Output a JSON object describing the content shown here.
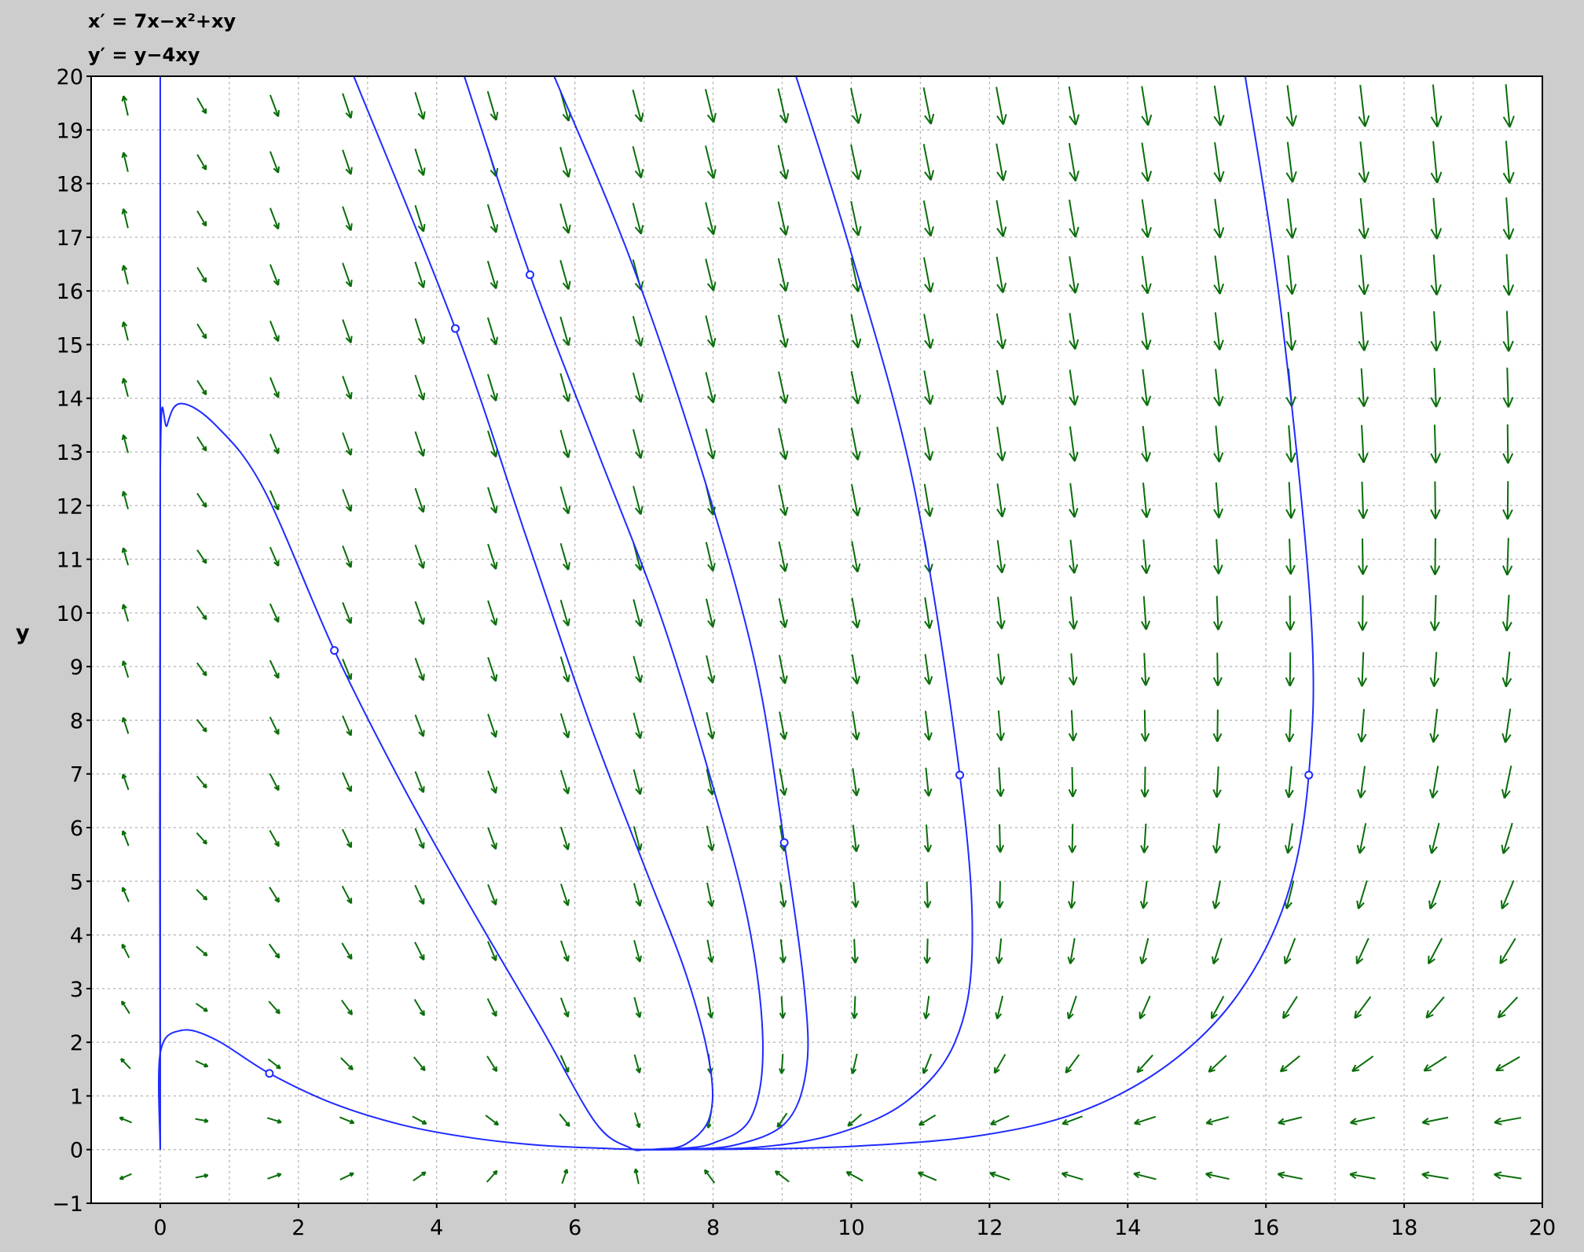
{
  "equations": {
    "x_prime": "x′ = 7x−x²+xy",
    "y_prime": "y′ = y−4xy"
  },
  "colors": {
    "background": "#cdcdcd",
    "plot_background": "#ffffff",
    "grid": "#b4b4b4",
    "trajectory": "#1f2bff",
    "direction_field": "#0a6e0a"
  },
  "chart_data": {
    "type": "direction field",
    "title": "",
    "xlabel": "",
    "ylabel": "y",
    "xlim": [
      -1,
      20
    ],
    "ylim": [
      -1,
      20
    ],
    "x_ticks": [
      "0",
      "2",
      "4",
      "6",
      "8",
      "10",
      "12",
      "14",
      "16",
      "18",
      "20"
    ],
    "y_ticks": [
      "-1",
      "0",
      "1",
      "2",
      "3",
      "4",
      "5",
      "6",
      "7",
      "8",
      "9",
      "10",
      "11",
      "12",
      "13",
      "14",
      "15",
      "16",
      "17",
      "18",
      "19",
      "20"
    ],
    "grid": true,
    "system": {
      "dx": "7x - x^2 + xy",
      "dy": "y - 4xy"
    },
    "field_x": [
      -0.5,
      0.6,
      1.65,
      2.7,
      3.75,
      4.8,
      5.85,
      6.9,
      7.95,
      9.0,
      10.05,
      11.1,
      12.15,
      13.2,
      14.25,
      15.3,
      16.35,
      17.4,
      18.45,
      19.5
    ],
    "field_y": [
      -0.5,
      0.55,
      1.6,
      2.65,
      3.7,
      4.75,
      5.8,
      6.85,
      7.9,
      8.95,
      10.0,
      11.05,
      12.1,
      13.15,
      14.2,
      15.25,
      16.3,
      17.35,
      18.4,
      19.45
    ],
    "trajectories": [
      {
        "initial": [
          1.58,
          1.42
        ],
        "points": [
          [
            0,
            0
          ],
          [
            0,
            1.8
          ],
          [
            0.3,
            2.22
          ],
          [
            0.8,
            2.05
          ],
          [
            1.58,
            1.42
          ],
          [
            2.5,
            0.86
          ],
          [
            3.5,
            0.46
          ],
          [
            4.5,
            0.22
          ],
          [
            5.5,
            0.08
          ],
          [
            6.5,
            0.02
          ],
          [
            7.0,
            0.0
          ]
        ]
      },
      {
        "initial": [
          2.52,
          9.3
        ],
        "points": [
          [
            0,
            0
          ],
          [
            0,
            12.6
          ],
          [
            0.1,
            13.5
          ],
          [
            0.3,
            13.9
          ],
          [
            0.8,
            13.5
          ],
          [
            1.5,
            12.3
          ],
          [
            2.52,
            9.3
          ],
          [
            3.5,
            6.8
          ],
          [
            4.5,
            4.5
          ],
          [
            5.5,
            2.3
          ],
          [
            6.3,
            0.5
          ],
          [
            6.8,
            0.03
          ],
          [
            7.0,
            0.0
          ]
        ]
      },
      {
        "initial": [
          4.27,
          15.3
        ],
        "points": [
          [
            2.8,
            20
          ],
          [
            4.27,
            15.3
          ],
          [
            5.3,
            11.4
          ],
          [
            6.2,
            8.0
          ],
          [
            7.0,
            5.3
          ],
          [
            7.6,
            3.3
          ],
          [
            7.95,
            1.6
          ],
          [
            7.95,
            0.6
          ],
          [
            7.6,
            0.1
          ],
          [
            7.2,
            0.01
          ],
          [
            7.0,
            0.0
          ]
        ]
      },
      {
        "initial": [
          5.35,
          16.3
        ],
        "points": [
          [
            4.4,
            20
          ],
          [
            5.35,
            16.3
          ],
          [
            6.3,
            13.1
          ],
          [
            7.2,
            10.1
          ],
          [
            7.9,
            7.2
          ],
          [
            8.5,
            4.3
          ],
          [
            8.72,
            2.0
          ],
          [
            8.55,
            0.6
          ],
          [
            8.0,
            0.12
          ],
          [
            7.4,
            0.01
          ],
          [
            7.0,
            0.0
          ]
        ]
      },
      {
        "initial": [
          9.03,
          5.72
        ],
        "points": [
          [
            5.7,
            20
          ],
          [
            6.8,
            16.6
          ],
          [
            7.8,
            12.8
          ],
          [
            8.6,
            9.1
          ],
          [
            9.03,
            5.72
          ],
          [
            9.32,
            3.0
          ],
          [
            9.35,
            1.5
          ],
          [
            9.05,
            0.5
          ],
          [
            8.3,
            0.08
          ],
          [
            7.5,
            0.01
          ],
          [
            7.0,
            0.0
          ]
        ]
      },
      {
        "initial": [
          11.57,
          6.98
        ],
        "points": [
          [
            9.2,
            20
          ],
          [
            10.0,
            16.7
          ],
          [
            10.9,
            12.4
          ],
          [
            11.57,
            6.98
          ],
          [
            11.75,
            3.8
          ],
          [
            11.5,
            2.0
          ],
          [
            10.8,
            0.9
          ],
          [
            9.8,
            0.3
          ],
          [
            8.7,
            0.05
          ],
          [
            7.5,
            0.0
          ],
          [
            7.0,
            0.0
          ]
        ]
      },
      {
        "initial": [
          16.62,
          6.98
        ],
        "points": [
          [
            15.7,
            20
          ],
          [
            16.2,
            15.8
          ],
          [
            16.65,
            10.0
          ],
          [
            16.62,
            6.98
          ],
          [
            16.3,
            4.7
          ],
          [
            15.6,
            2.9
          ],
          [
            14.6,
            1.6
          ],
          [
            13.3,
            0.7
          ],
          [
            11.8,
            0.25
          ],
          [
            10.0,
            0.06
          ],
          [
            8.5,
            0.01
          ],
          [
            7.0,
            0.0
          ]
        ]
      }
    ],
    "vertical_trajectory_x": 0
  }
}
